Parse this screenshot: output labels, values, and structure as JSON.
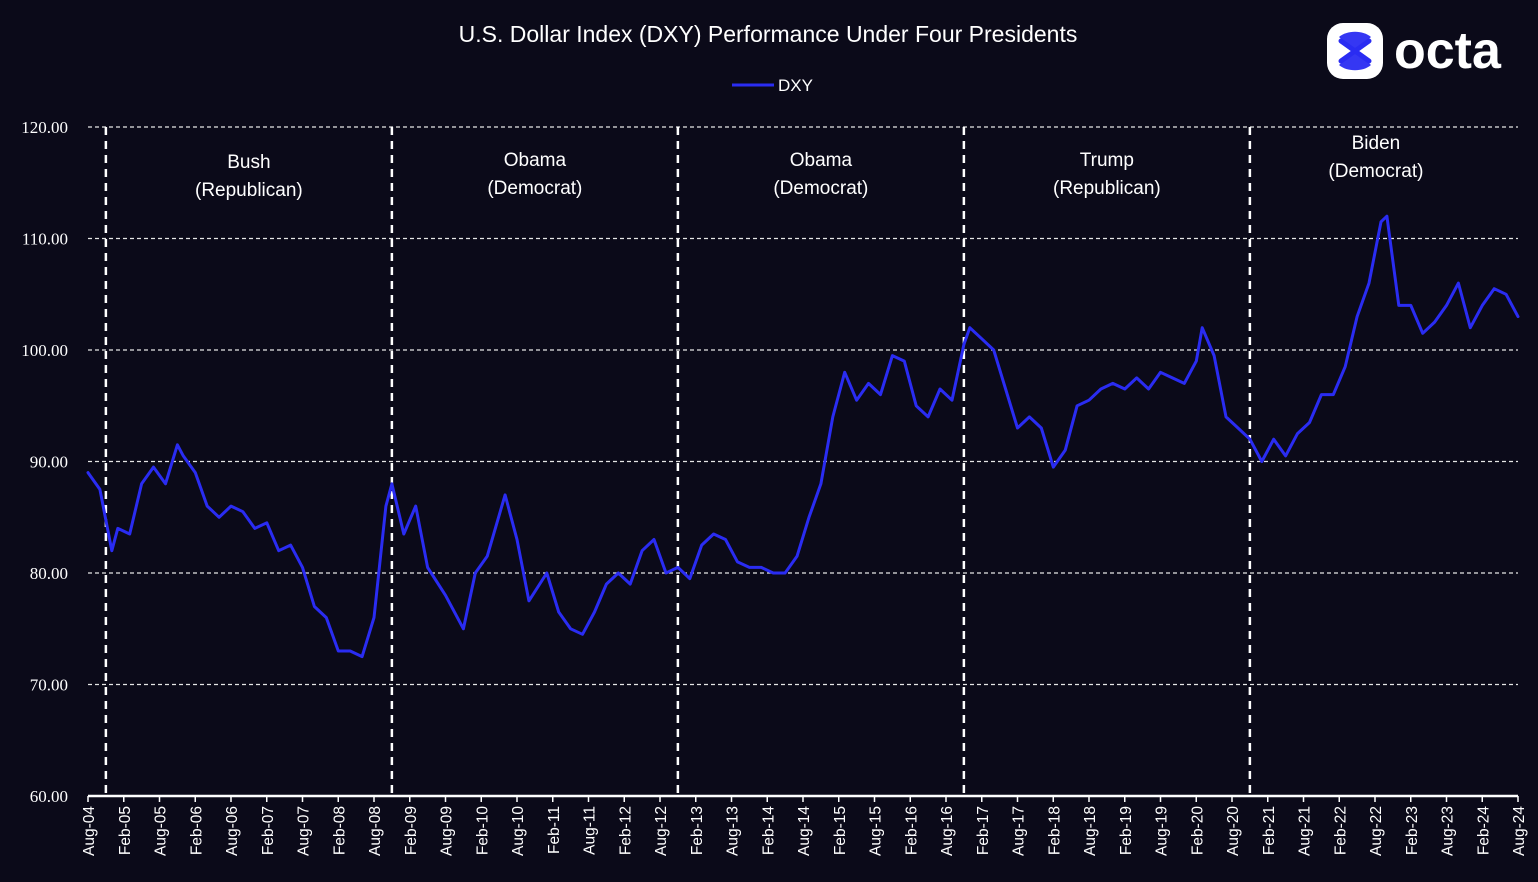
{
  "chart_data": {
    "type": "line",
    "title": "U.S. Dollar Index (DXY) Performance Under Four Presidents",
    "xlabel": "",
    "ylabel": "",
    "ylim": [
      60,
      120
    ],
    "y_ticks": [
      "60.00",
      "70.00",
      "80.00",
      "90.00",
      "100.00",
      "110.00",
      "120.00"
    ],
    "x_ticks": [
      "Aug-04",
      "Feb-05",
      "Aug-05",
      "Feb-06",
      "Aug-06",
      "Feb-07",
      "Aug-07",
      "Feb-08",
      "Aug-08",
      "Feb-09",
      "Aug-09",
      "Feb-10",
      "Aug-10",
      "Feb-11",
      "Aug-11",
      "Feb-12",
      "Aug-12",
      "Feb-13",
      "Aug-13",
      "Feb-14",
      "Aug-14",
      "Feb-15",
      "Aug-15",
      "Feb-16",
      "Aug-16",
      "Feb-17",
      "Aug-17",
      "Feb-18",
      "Aug-18",
      "Feb-19",
      "Aug-19",
      "Feb-20",
      "Aug-20",
      "Feb-21",
      "Aug-21",
      "Feb-22",
      "Aug-22",
      "Feb-23",
      "Aug-23",
      "Feb-24",
      "Aug-24"
    ],
    "legend": {
      "position": "top-center",
      "entries": [
        "DXY"
      ]
    },
    "grid": "horizontal-dashed",
    "line_color": "#2a2cf2",
    "series": [
      {
        "name": "DXY",
        "x": [
          "2004-08",
          "2004-10",
          "2004-12",
          "2005-01",
          "2005-03",
          "2005-05",
          "2005-07",
          "2005-09",
          "2005-11",
          "2005-12",
          "2006-02",
          "2006-04",
          "2006-06",
          "2006-08",
          "2006-10",
          "2006-12",
          "2007-02",
          "2007-04",
          "2007-06",
          "2007-08",
          "2007-10",
          "2007-12",
          "2008-02",
          "2008-04",
          "2008-06",
          "2008-08",
          "2008-10",
          "2008-11",
          "2009-01",
          "2009-03",
          "2009-05",
          "2009-08",
          "2009-11",
          "2010-01",
          "2010-03",
          "2010-06",
          "2010-08",
          "2010-10",
          "2011-01",
          "2011-03",
          "2011-05",
          "2011-07",
          "2011-09",
          "2011-11",
          "2012-01",
          "2012-03",
          "2012-05",
          "2012-07",
          "2012-09",
          "2012-11",
          "2013-01",
          "2013-03",
          "2013-05",
          "2013-07",
          "2013-09",
          "2013-11",
          "2014-01",
          "2014-03",
          "2014-05",
          "2014-07",
          "2014-09",
          "2014-11",
          "2015-01",
          "2015-03",
          "2015-05",
          "2015-07",
          "2015-09",
          "2015-11",
          "2016-01",
          "2016-03",
          "2016-05",
          "2016-07",
          "2016-09",
          "2016-11",
          "2016-12",
          "2017-02",
          "2017-04",
          "2017-06",
          "2017-08",
          "2017-10",
          "2017-12",
          "2018-02",
          "2018-04",
          "2018-06",
          "2018-08",
          "2018-10",
          "2018-12",
          "2019-02",
          "2019-04",
          "2019-06",
          "2019-08",
          "2019-10",
          "2019-12",
          "2020-02",
          "2020-03",
          "2020-05",
          "2020-07",
          "2020-09",
          "2020-11",
          "2021-01",
          "2021-03",
          "2021-05",
          "2021-07",
          "2021-09",
          "2021-11",
          "2022-01",
          "2022-03",
          "2022-05",
          "2022-07",
          "2022-09",
          "2022-10",
          "2022-12",
          "2023-02",
          "2023-04",
          "2023-06",
          "2023-08",
          "2023-10",
          "2023-12",
          "2024-02",
          "2024-04",
          "2024-06",
          "2024-08"
        ],
        "values": [
          89.0,
          87.5,
          82.0,
          84.0,
          83.5,
          88.0,
          89.5,
          88.0,
          91.5,
          90.5,
          89.0,
          86.0,
          85.0,
          86.0,
          85.5,
          84.0,
          84.5,
          82.0,
          82.5,
          80.5,
          77.0,
          76.0,
          73.0,
          73.0,
          72.5,
          76.0,
          86.0,
          88.0,
          83.5,
          86.0,
          80.5,
          78.0,
          75.0,
          80.0,
          81.5,
          87.0,
          83.0,
          77.5,
          80.0,
          76.5,
          75.0,
          74.5,
          76.5,
          79.0,
          80.0,
          79.0,
          82.0,
          83.0,
          80.0,
          80.5,
          79.5,
          82.5,
          83.5,
          83.0,
          81.0,
          80.5,
          80.5,
          80.0,
          80.0,
          81.5,
          85.0,
          88.0,
          94.0,
          98.0,
          95.5,
          97.0,
          96.0,
          99.5,
          99.0,
          95.0,
          94.0,
          96.5,
          95.5,
          100.5,
          102.0,
          101.0,
          100.0,
          96.5,
          93.0,
          94.0,
          93.0,
          89.5,
          91.0,
          95.0,
          95.5,
          96.5,
          97.0,
          96.5,
          97.5,
          96.5,
          98.0,
          97.5,
          97.0,
          99.0,
          102.0,
          99.5,
          94.0,
          93.0,
          92.0,
          90.0,
          92.0,
          90.5,
          92.5,
          93.5,
          96.0,
          96.0,
          98.5,
          103.0,
          106.0,
          111.5,
          112.0,
          104.0,
          104.0,
          101.5,
          102.5,
          104.0,
          106.0,
          102.0,
          104.0,
          105.5,
          105.0,
          103.0
        ]
      }
    ],
    "period_dividers": [
      "2004-11",
      "2008-11",
      "2012-11",
      "2016-11",
      "2020-11"
    ],
    "annotations": [
      {
        "name": "Bush",
        "party": "(Republican)"
      },
      {
        "name": "Obama",
        "party": "(Democrat)"
      },
      {
        "name": "Obama",
        "party": "(Democrat)"
      },
      {
        "name": "Trump",
        "party": "(Republican)"
      },
      {
        "name": "Biden",
        "party": "(Democrat)"
      }
    ]
  },
  "logo": {
    "text": "octa",
    "icon": "octa-logo-icon"
  }
}
